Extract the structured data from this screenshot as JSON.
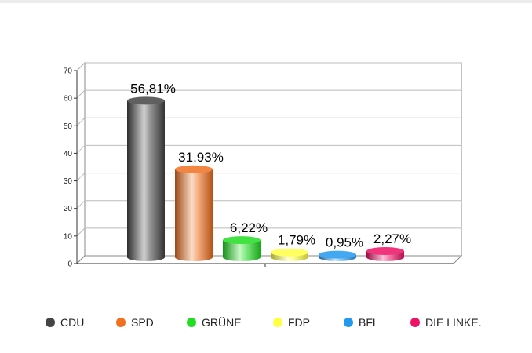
{
  "chart_data": {
    "type": "bar",
    "categories": [
      "CDU",
      "SPD",
      "GRÜNE",
      "FDP",
      "BFL",
      "DIE LINKE."
    ],
    "values": [
      56.81,
      31.93,
      6.22,
      1.79,
      0.95,
      2.27
    ],
    "value_labels": [
      "56,81%",
      "31,93%",
      "6,22%",
      "1,79%",
      "0,95%",
      "2,27%"
    ],
    "colors": [
      "#444444",
      "#f07020",
      "#22dd22",
      "#ffff44",
      "#2299ee",
      "#ee1166"
    ],
    "ylim": [
      0,
      70
    ],
    "yticks": [
      0,
      10,
      20,
      30,
      40,
      50,
      60,
      70
    ],
    "grid": true,
    "legend_position": "bottom"
  }
}
